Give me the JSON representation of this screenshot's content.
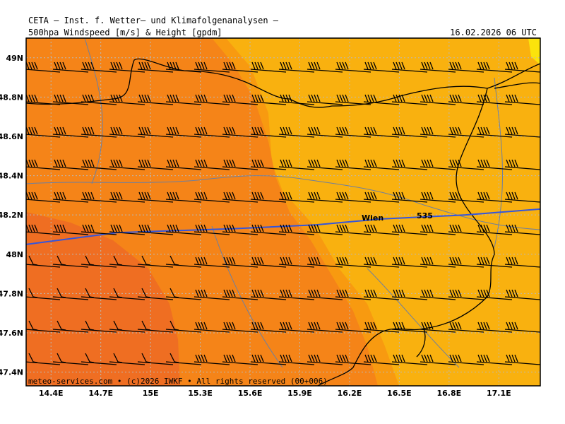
{
  "header": {
    "title": "CETA — Inst. f. Wetter— und Klimafolgenanalysen —",
    "subtitle": "500hpa Windspeed [m/s] & Height [gpdm]",
    "valid_time": "16.02.2026 06 UTC"
  },
  "footer": {
    "credit": "meteo-services.com • (c)2026 IWKF • All rights reserved (00+006)"
  },
  "map": {
    "city_label": "Wien",
    "contour_label": "535",
    "lat_labels": [
      "49N",
      "48.8N",
      "48.6N",
      "48.4N",
      "48.2N",
      "48N",
      "47.8N",
      "47.6N",
      "47.4N"
    ],
    "lon_labels": [
      "14.4E",
      "14.7E",
      "15E",
      "15.3E",
      "15.6E",
      "15.9E",
      "16.2E",
      "16.5E",
      "16.8E",
      "17.1E"
    ],
    "colors": {
      "wind_light": "#f9b10f",
      "wind_mid": "#f89a10",
      "wind_strong": "#f58418",
      "wind_max": "#ef6e22",
      "height_contour": "#3355dd",
      "border": "#000000",
      "river": "#6d7fa0"
    }
  },
  "chart_data": {
    "type": "heatmap",
    "title": "500hpa Windspeed [m/s] & Height [gpdm]",
    "xlabel": "",
    "ylabel": "",
    "xlim": [
      14.25,
      17.35
    ],
    "ylim": [
      47.33,
      49.1
    ],
    "height_contours": [
      {
        "value": 535,
        "points": [
          [
            14.25,
            48.05
          ],
          [
            14.8,
            48.11
          ],
          [
            15.5,
            48.13
          ],
          [
            16.0,
            48.15
          ],
          [
            16.4,
            48.18
          ],
          [
            16.9,
            48.2
          ],
          [
            17.35,
            48.23
          ]
        ]
      }
    ],
    "wind_regions": [
      "light (east)",
      "moderate (central)",
      "strong (west)",
      "strongest (southwest)"
    ]
  }
}
